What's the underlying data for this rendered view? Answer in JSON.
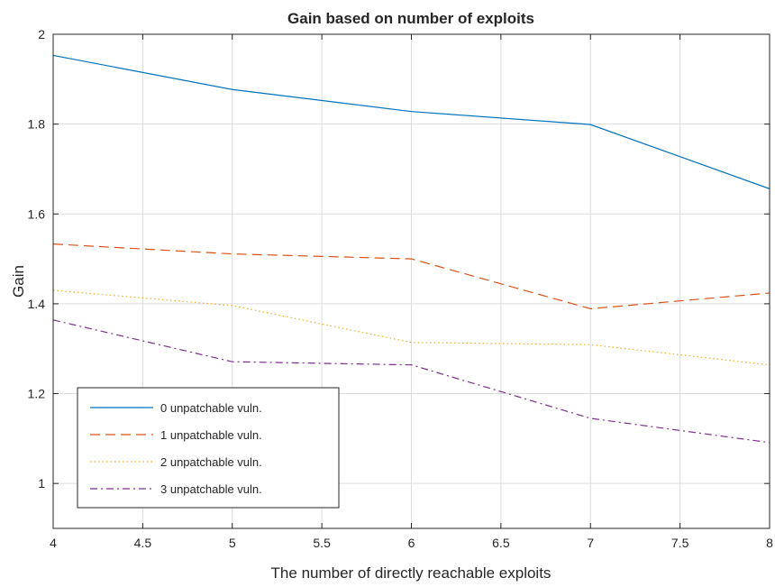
{
  "chart_data": {
    "type": "line",
    "title": "Gain based on number of exploits",
    "xlabel": "The number of directly reachable exploits",
    "ylabel": "Gain",
    "xlim": [
      4,
      8
    ],
    "ylim": [
      0.9,
      2.0
    ],
    "x_ticks": [
      4,
      4.5,
      5,
      5.5,
      6,
      6.5,
      7,
      7.5,
      8
    ],
    "x_tick_labels": [
      "4",
      "4.5",
      "5",
      "5.5",
      "6",
      "6.5",
      "7",
      "7.5",
      "8"
    ],
    "y_ticks": [
      1.0,
      1.2,
      1.4,
      1.6,
      1.8,
      2.0
    ],
    "y_tick_labels": [
      "1",
      "1.2",
      "1.4",
      "1.6",
      "1.8",
      "2"
    ],
    "grid": true,
    "legend_position": "bottom-left",
    "x": [
      4,
      5,
      6,
      7,
      8
    ],
    "series": [
      {
        "name": "0 unpatchable vuln.",
        "values": [
          1.953,
          1.877,
          1.828,
          1.799,
          1.656
        ],
        "color": "#0072BD",
        "dash": "solid"
      },
      {
        "name": "1 unpatchable vuln.",
        "values": [
          1.533,
          1.511,
          1.5,
          1.389,
          1.424
        ],
        "color": "#D95319",
        "dash": "dashed"
      },
      {
        "name": "2 unpatchable vuln.",
        "values": [
          1.43,
          1.396,
          1.314,
          1.309,
          1.264
        ],
        "color": "#EDB120",
        "dash": "dotted"
      },
      {
        "name": "3 unpatchable vuln.",
        "values": [
          1.364,
          1.271,
          1.264,
          1.145,
          1.091
        ],
        "color": "#7E2F8E",
        "dash": "dashdot"
      }
    ]
  }
}
